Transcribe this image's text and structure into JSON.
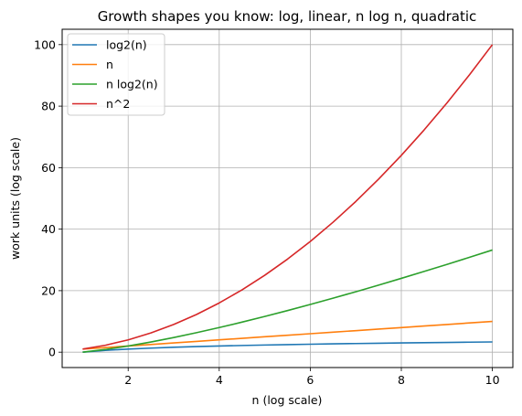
{
  "chart_data": {
    "type": "line",
    "title": "Growth shapes you know: log, linear, n log n, quadratic",
    "xlabel": "n (log scale)",
    "ylabel": "work units (log scale)",
    "xlim": [
      0.55,
      10.45
    ],
    "ylim": [
      -5.0,
      105.0
    ],
    "xticks": [
      2,
      4,
      6,
      8,
      10
    ],
    "yticks": [
      0,
      20,
      40,
      60,
      80,
      100
    ],
    "grid": true,
    "legend_position": "upper-left",
    "x": [
      1,
      1.5,
      2,
      2.5,
      3,
      3.5,
      4,
      4.5,
      5,
      5.5,
      6,
      6.5,
      7,
      7.5,
      8,
      8.5,
      9,
      9.5,
      10
    ],
    "series": [
      {
        "name": "log2(n)",
        "color": "#1f77b4",
        "values": [
          0,
          0.585,
          1,
          1.322,
          1.585,
          1.807,
          2,
          2.17,
          2.322,
          2.459,
          2.585,
          2.701,
          2.807,
          2.907,
          3,
          3.087,
          3.17,
          3.248,
          3.322
        ]
      },
      {
        "name": "n",
        "color": "#ff7f0e",
        "values": [
          1,
          1.5,
          2,
          2.5,
          3,
          3.5,
          4,
          4.5,
          5,
          5.5,
          6,
          6.5,
          7,
          7.5,
          8,
          8.5,
          9,
          9.5,
          10
        ]
      },
      {
        "name": "n log2(n)",
        "color": "#2ca02c",
        "values": [
          0,
          0.877,
          2,
          3.305,
          4.755,
          6.326,
          8,
          9.765,
          11.61,
          13.53,
          15.51,
          17.55,
          19.65,
          21.8,
          24,
          26.24,
          28.53,
          30.86,
          33.22
        ]
      },
      {
        "name": "n^2",
        "color": "#d62728",
        "values": [
          1,
          2.25,
          4,
          6.25,
          9,
          12.25,
          16,
          20.25,
          25,
          30.25,
          36,
          42.25,
          49,
          56.25,
          64,
          72.25,
          81,
          90.25,
          100
        ]
      }
    ]
  }
}
